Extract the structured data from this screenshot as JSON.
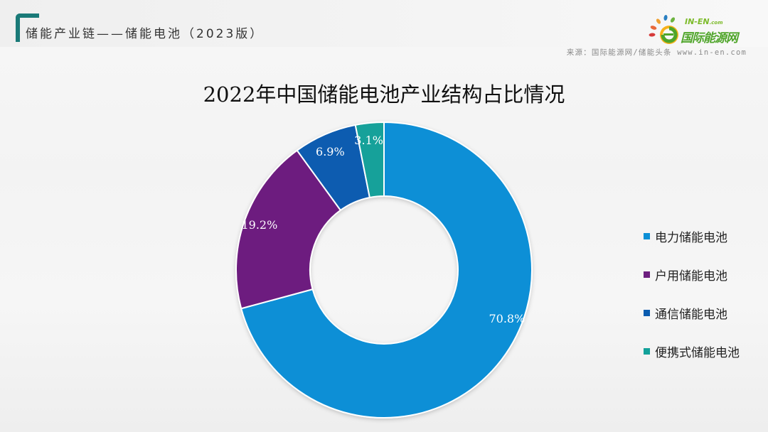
{
  "header": {
    "title": "储能产业链——储能电池（2023版）",
    "accent_color": "#1a7a78"
  },
  "logo": {
    "en": "IN-EN",
    "en_suffix": ".com",
    "cn": "国际能源网"
  },
  "source": "来源：国际能源网/储能头条 www.in-en.com",
  "chart_data": {
    "type": "pie",
    "subtype": "donut",
    "title": "2022年中国储能电池产业结构占比情况",
    "categories": [
      "电力储能电池",
      "户用储能电池",
      "通信储能电池",
      "便携式储能电池"
    ],
    "values": [
      70.8,
      19.2,
      6.9,
      3.1
    ],
    "unit": "%",
    "labels": [
      "70.8%",
      "19.2%",
      "6.9%",
      "3.1%"
    ],
    "colors": [
      "#0b8fd6",
      "#6d1f7f",
      "#0a5cb0",
      "#12a19a"
    ],
    "start_angle": "12 o'clock",
    "direction": "clockwise",
    "legend_position": "right"
  },
  "legend": [
    {
      "label": "电力储能电池",
      "color": "#0b8fd6"
    },
    {
      "label": "户用储能电池",
      "color": "#6d1f7f"
    },
    {
      "label": "通信储能电池",
      "color": "#0a5cb0"
    },
    {
      "label": "便携式储能电池",
      "color": "#12a19a"
    }
  ]
}
